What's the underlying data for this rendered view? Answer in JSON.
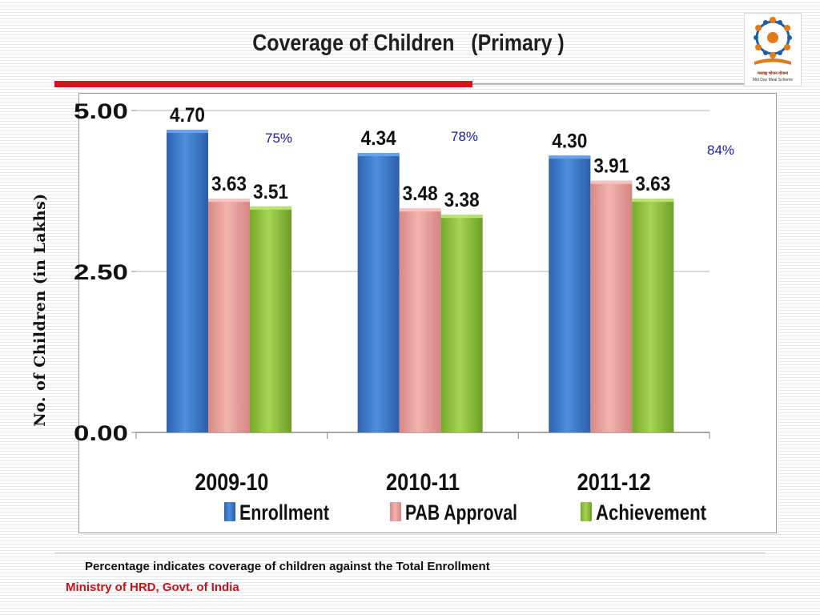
{
  "slide": {
    "title": "Coverage of Children   (Primary )",
    "footnote": "Percentage indicates coverage of children against the Total Enrollment",
    "source": "Ministry of HRD, Govt. of India"
  },
  "logo": {
    "icon": "mid-day-meal-logo-icon",
    "caption_hi": "मध्याह्न भोजन योजना",
    "caption_en": "Mid Day Meal Scheme"
  },
  "colors": {
    "title_rule": "#d0171d",
    "source_text": "#c8101a",
    "percent_text": "#1a1aa8",
    "Enrollment": "#3b78cc",
    "PAB Approval": "#e8a09c",
    "Achievement": "#8fc23a"
  },
  "chart_data": {
    "type": "bar",
    "title": "",
    "xlabel": "",
    "ylabel": "No. of Children (in Lakhs)",
    "ylim": [
      0,
      5
    ],
    "yticks": [
      "0.00",
      "2.50",
      "5.00"
    ],
    "categories": [
      "2009-10",
      "2010-11",
      "2011-12"
    ],
    "series": [
      {
        "name": "Enrollment",
        "values": [
          4.7,
          4.34,
          4.3
        ],
        "labels": [
          "4.70",
          "4.34",
          "4.30"
        ]
      },
      {
        "name": "PAB Approval",
        "values": [
          3.63,
          3.48,
          3.91
        ],
        "labels": [
          "3.63",
          "3.48",
          "3.91"
        ]
      },
      {
        "name": "Achievement",
        "values": [
          3.51,
          3.38,
          3.63
        ],
        "labels": [
          "3.51",
          "3.38",
          "3.63"
        ]
      }
    ],
    "coverage": [
      "75%",
      "78%",
      "84%"
    ],
    "grid": true,
    "legend": "bottom"
  }
}
